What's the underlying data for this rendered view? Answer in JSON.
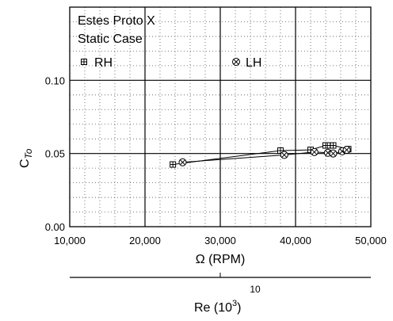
{
  "chart_data": {
    "type": "line",
    "title": "Estes Proto X",
    "subtitle": "Static Case",
    "xlabel": "Ω (RPM)",
    "ylabel_main": "C",
    "ylabel_sub": "To",
    "xlim": [
      10000,
      50000
    ],
    "ylim": [
      0.0,
      0.15
    ],
    "x_ticks": [
      10000,
      20000,
      30000,
      40000,
      50000
    ],
    "x_tick_labels": [
      "10,000",
      "20,000",
      "30,000",
      "40,000",
      "50,000"
    ],
    "y_ticks": [
      0.0,
      0.05,
      0.1
    ],
    "y_tick_labels": [
      "0.00",
      "0.05",
      "0.10"
    ],
    "grid": "major solid, minor dotted",
    "legend_position": "top, inside plot",
    "series": [
      {
        "name": "RH",
        "marker": "boxed-plus",
        "points": [
          {
            "x": 23700,
            "y": 0.0425
          },
          {
            "x": 38000,
            "y": 0.052
          },
          {
            "x": 42000,
            "y": 0.0525
          },
          {
            "x": 44000,
            "y": 0.0555
          },
          {
            "x": 44600,
            "y": 0.0555
          },
          {
            "x": 45000,
            "y": 0.0555
          },
          {
            "x": 47000,
            "y": 0.053
          }
        ]
      },
      {
        "name": "LH",
        "marker": "circled-x",
        "points": [
          {
            "x": 25000,
            "y": 0.044
          },
          {
            "x": 38500,
            "y": 0.049
          },
          {
            "x": 42500,
            "y": 0.051
          },
          {
            "x": 44300,
            "y": 0.0505
          },
          {
            "x": 45000,
            "y": 0.05
          },
          {
            "x": 46200,
            "y": 0.0515
          },
          {
            "x": 46800,
            "y": 0.0525
          }
        ]
      }
    ],
    "secondary_axis": {
      "label_main": "Re (10",
      "label_sup": "3",
      "label_end": ")",
      "tick_label": "10"
    }
  }
}
